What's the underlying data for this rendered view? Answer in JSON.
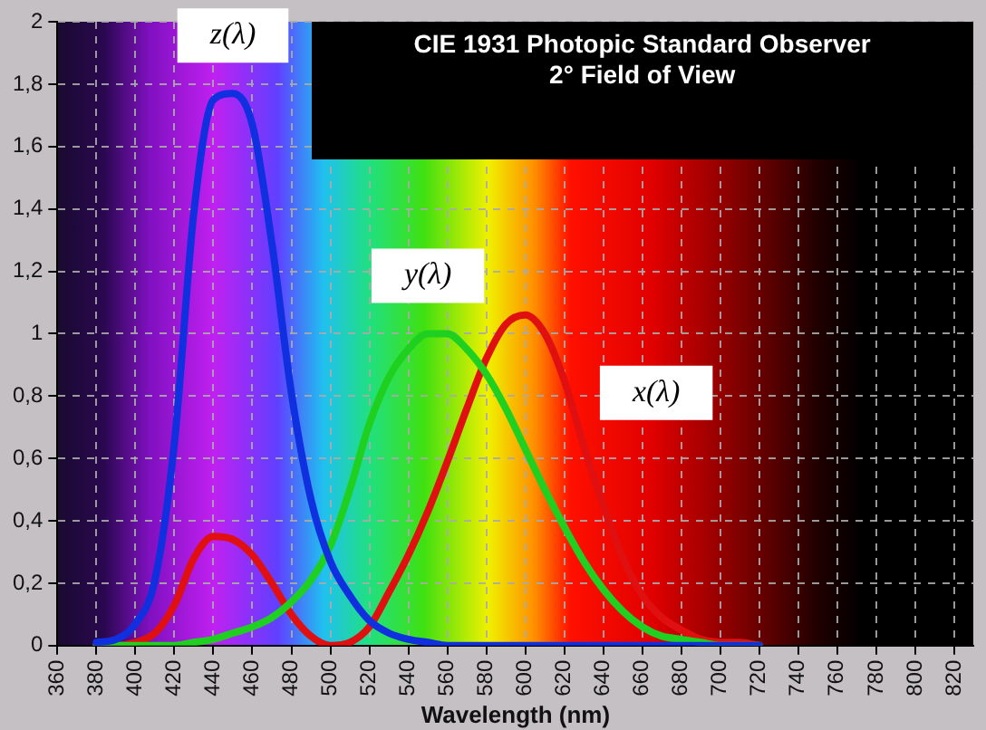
{
  "chart_data": {
    "type": "line",
    "title": "CIE 1931 Photopic Standard Observer",
    "subtitle": "2° Field of View",
    "xlabel": "Wavelength (nm)",
    "x": [
      380,
      390,
      400,
      410,
      420,
      430,
      440,
      450,
      460,
      470,
      480,
      490,
      500,
      510,
      520,
      530,
      540,
      550,
      560,
      570,
      580,
      590,
      600,
      610,
      620,
      630,
      640,
      650,
      660,
      670,
      680,
      690,
      700,
      710,
      720
    ],
    "series": [
      {
        "name": "z(λ)",
        "color": "#1030e0",
        "values": [
          0.01,
          0.02,
          0.07,
          0.21,
          0.65,
          1.39,
          1.75,
          1.77,
          1.67,
          1.29,
          0.81,
          0.47,
          0.27,
          0.16,
          0.08,
          0.04,
          0.02,
          0.01,
          0,
          0,
          0,
          0,
          0,
          0,
          0,
          0,
          0,
          0,
          0,
          0,
          0,
          0,
          0,
          0,
          0
        ]
      },
      {
        "name": "y(λ)",
        "color": "#20d020",
        "values": [
          0,
          0,
          0,
          0,
          0,
          0.01,
          0.02,
          0.04,
          0.06,
          0.09,
          0.14,
          0.21,
          0.32,
          0.5,
          0.71,
          0.86,
          0.95,
          1,
          1,
          0.95,
          0.87,
          0.76,
          0.63,
          0.5,
          0.38,
          0.27,
          0.18,
          0.11,
          0.06,
          0.03,
          0.02,
          0.01,
          0,
          0,
          0
        ]
      },
      {
        "name": "x(λ)",
        "color": "#e01010",
        "values": [
          0,
          0,
          0.01,
          0.04,
          0.13,
          0.28,
          0.35,
          0.34,
          0.29,
          0.2,
          0.1,
          0.03,
          0,
          0.01,
          0.06,
          0.17,
          0.29,
          0.43,
          0.59,
          0.76,
          0.92,
          1.03,
          1.06,
          1,
          0.85,
          0.64,
          0.45,
          0.28,
          0.16,
          0.09,
          0.05,
          0.02,
          0.01,
          0.01,
          0
        ]
      }
    ],
    "xlim": [
      360,
      830
    ],
    "xticks": [
      360,
      380,
      400,
      420,
      440,
      460,
      480,
      500,
      520,
      540,
      560,
      580,
      600,
      620,
      640,
      660,
      680,
      700,
      720,
      740,
      760,
      780,
      800,
      820
    ],
    "ylim": [
      0,
      2
    ],
    "yticks": [
      0,
      {
        "value": 0.2,
        "label": "0,2"
      },
      {
        "value": 0.4,
        "label": "0,4"
      },
      {
        "value": 0.6,
        "label": "0,6"
      },
      {
        "value": 0.8,
        "label": "0,8"
      },
      1,
      {
        "value": 1.2,
        "label": "1,2"
      },
      {
        "value": 1.4,
        "label": "1,4"
      },
      {
        "value": 1.6,
        "label": "1,6"
      },
      {
        "value": 1.8,
        "label": "1,8"
      },
      2
    ],
    "grid": true,
    "legend": false,
    "marker": "none",
    "line_style": "solid"
  }
}
